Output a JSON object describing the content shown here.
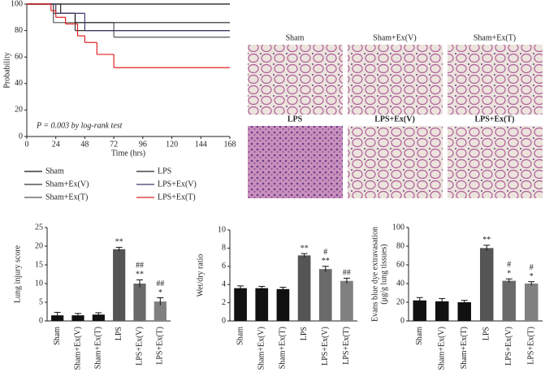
{
  "chart_data": [
    {
      "type": "survival",
      "xlabel": "Time (hrs)",
      "ylabel": "Probability",
      "annotation": "P = 0.003 by log-rank test",
      "xlim": [
        0,
        168
      ],
      "xticks": [
        0,
        24,
        48,
        72,
        96,
        120,
        144,
        168
      ],
      "ylim": [
        0,
        100
      ],
      "yticks": [
        0,
        20,
        40,
        60,
        80,
        100
      ],
      "series": [
        {
          "name": "Sham",
          "color": "#111111",
          "x": [
            0,
            168
          ],
          "values": [
            100,
            100
          ]
        },
        {
          "name": "Sham+Ex(V)",
          "color": "#333333",
          "x": [
            0,
            22,
            40,
            168
          ],
          "values": [
            100,
            93,
            80,
            80
          ]
        },
        {
          "name": "Sham+Ex(T)",
          "color": "#555555",
          "x": [
            0,
            22,
            72,
            168
          ],
          "values": [
            100,
            86,
            75,
            75
          ]
        },
        {
          "name": "LPS",
          "color": "#222222",
          "x": [
            0,
            28,
            40,
            168
          ],
          "values": [
            100,
            93,
            86,
            86
          ]
        },
        {
          "name": "LPS+Ex(V)",
          "color": "#3a3a6a",
          "x": [
            0,
            24,
            48,
            168
          ],
          "values": [
            100,
            93,
            80,
            80
          ]
        },
        {
          "name": "LPS+Ex(T)",
          "color": "#e02020",
          "x": [
            0,
            20,
            24,
            32,
            42,
            48,
            58,
            72,
            168
          ],
          "values": [
            100,
            95,
            90,
            85,
            76,
            71,
            62,
            52,
            52
          ]
        }
      ]
    },
    {
      "type": "image-grid",
      "panels": [
        "Sham",
        "Sham+Ex(V)",
        "Sham+Ex(T)",
        "LPS",
        "LPS+Ex(V)",
        "LPS+Ex(T)"
      ]
    },
    {
      "type": "bar",
      "ylabel": "Lung injury score",
      "ylim": [
        0,
        25
      ],
      "yticks": [
        0,
        5,
        10,
        15,
        20,
        25
      ],
      "categories": [
        "Sham",
        "Sham+Ex(V)",
        "Sham+Ex(T)",
        "LPS",
        "LPS+Ex(V)",
        "LPS+Ex(T)"
      ],
      "colors": [
        "#111111",
        "#111111",
        "#111111",
        "#555555",
        "#6a6a6a",
        "#808080"
      ],
      "values": [
        1.5,
        1.5,
        1.7,
        19.2,
        10,
        5.2
      ],
      "errors": [
        0.8,
        0.5,
        0.5,
        0.5,
        1.0,
        1.0
      ],
      "annotations": [
        null,
        null,
        null,
        [
          "**"
        ],
        [
          "##",
          "**"
        ],
        [
          "##",
          "*"
        ]
      ]
    },
    {
      "type": "bar",
      "ylabel": "Wet/dry ratio",
      "ylim": [
        0,
        10
      ],
      "yticks": [
        0,
        2,
        4,
        6,
        8,
        10
      ],
      "categories": [
        "Sham",
        "Sham+Ex(V)",
        "Sham+Ex(T)",
        "LPS",
        "LPS+Ex(V)",
        "LPS+Ex(T)"
      ],
      "colors": [
        "#111111",
        "#111111",
        "#111111",
        "#555555",
        "#6a6a6a",
        "#808080"
      ],
      "values": [
        3.6,
        3.6,
        3.5,
        7.2,
        5.7,
        4.4
      ],
      "errors": [
        0.25,
        0.2,
        0.2,
        0.2,
        0.3,
        0.3
      ],
      "annotations": [
        null,
        null,
        null,
        [
          "**"
        ],
        [
          "#",
          "**"
        ],
        [
          "##"
        ]
      ]
    },
    {
      "type": "bar",
      "ylabel": [
        "Evans blue dye extravasation",
        "(μg/g lung tissues)"
      ],
      "ylim": [
        0,
        100
      ],
      "yticks": [
        0,
        20,
        40,
        60,
        80,
        100
      ],
      "categories": [
        "Sham",
        "Sham+Ex(V)",
        "Sham+Ex(T)",
        "LPS",
        "LPS+Ex(V)",
        "LPS+Ex(T)"
      ],
      "colors": [
        "#111111",
        "#111111",
        "#111111",
        "#555555",
        "#6a6a6a",
        "#808080"
      ],
      "values": [
        22,
        21,
        20,
        78,
        43,
        40
      ],
      "errors": [
        3,
        3,
        2,
        3,
        2,
        2
      ],
      "annotations": [
        null,
        null,
        null,
        [
          "**"
        ],
        [
          "#",
          "*"
        ],
        [
          "#",
          "*"
        ]
      ]
    }
  ]
}
